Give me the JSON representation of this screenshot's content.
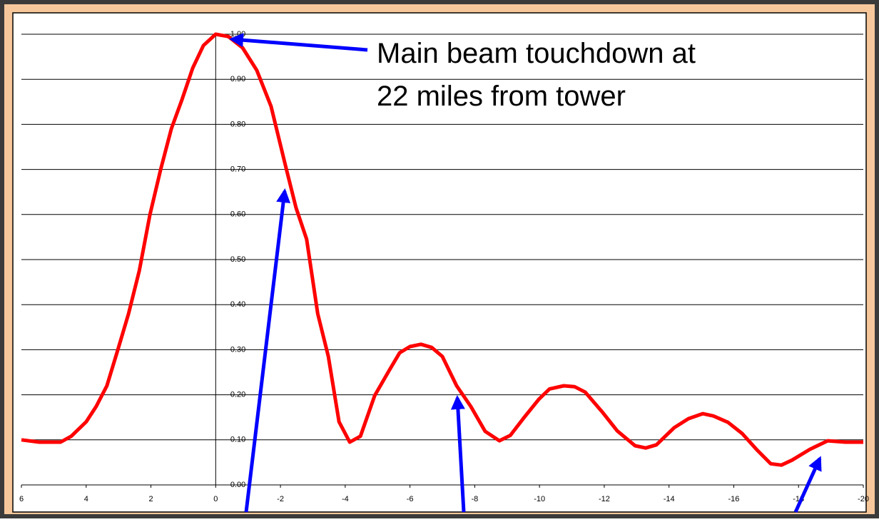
{
  "chart_data": {
    "type": "line",
    "annotation": [
      "Main beam touchdown at",
      "22 miles from tower"
    ],
    "x": [
      6,
      5.45,
      4.79,
      4.46,
      4.0,
      3.69,
      3.36,
      3.02,
      2.69,
      2.36,
      2.03,
      1.7,
      1.37,
      1.04,
      0.71,
      0.38,
      0,
      -0.39,
      -0.83,
      -1.27,
      -1.71,
      -2.15,
      -2.48,
      -2.81,
      -3.15,
      -3.48,
      -3.81,
      -4.14,
      -4.47,
      -4.91,
      -5.35,
      -5.68,
      -6.0,
      -6.34,
      -6.67,
      -7.0,
      -7.44,
      -7.88,
      -8.32,
      -8.76,
      -9.1,
      -9.53,
      -9.98,
      -10.31,
      -10.75,
      -11.08,
      -11.41,
      -11.96,
      -12.4,
      -12.95,
      -13.28,
      -13.61,
      -14.16,
      -14.6,
      -15.04,
      -15.37,
      -15.82,
      -16.26,
      -16.7,
      -17.14,
      -17.47,
      -17.8,
      -18.35,
      -18.9,
      -19.45,
      -20
    ],
    "values": [
      0.1,
      0.095,
      0.095,
      0.108,
      0.14,
      0.174,
      0.22,
      0.3,
      0.38,
      0.475,
      0.6,
      0.7,
      0.79,
      0.855,
      0.925,
      0.975,
      1.0,
      0.995,
      0.97,
      0.92,
      0.84,
      0.71,
      0.615,
      0.545,
      0.38,
      0.285,
      0.14,
      0.095,
      0.108,
      0.198,
      0.253,
      0.293,
      0.307,
      0.312,
      0.305,
      0.285,
      0.22,
      0.174,
      0.119,
      0.098,
      0.11,
      0.15,
      0.19,
      0.213,
      0.22,
      0.218,
      0.206,
      0.16,
      0.12,
      0.087,
      0.082,
      0.089,
      0.127,
      0.147,
      0.158,
      0.153,
      0.139,
      0.114,
      0.079,
      0.047,
      0.044,
      0.055,
      0.079,
      0.098,
      0.095,
      0.095
    ],
    "color": "#ff0000",
    "xlim": [
      6,
      -20
    ],
    "xticks": [
      6,
      4,
      2,
      0,
      -2,
      -4,
      -6,
      -8,
      -10,
      -12,
      -14,
      -16,
      -18,
      -20
    ],
    "ylim": [
      0,
      1
    ],
    "yticks": [
      {
        "value": 0,
        "label": "0.00"
      },
      {
        "value": 0.1,
        "label": "0.10"
      },
      {
        "value": 0.2,
        "label": "0.20"
      },
      {
        "value": 0.3,
        "label": "0.30"
      },
      {
        "value": 0.4,
        "label": "0.40"
      },
      {
        "value": 0.5,
        "label": "0.50"
      },
      {
        "value": 0.6,
        "label": "0.60"
      },
      {
        "value": 0.7,
        "label": "0.70"
      },
      {
        "value": 0.8,
        "label": "0.80"
      },
      {
        "value": 0.9,
        "label": "0.90"
      },
      {
        "value": 1,
        "label": "1.00"
      }
    ],
    "grid": true
  }
}
